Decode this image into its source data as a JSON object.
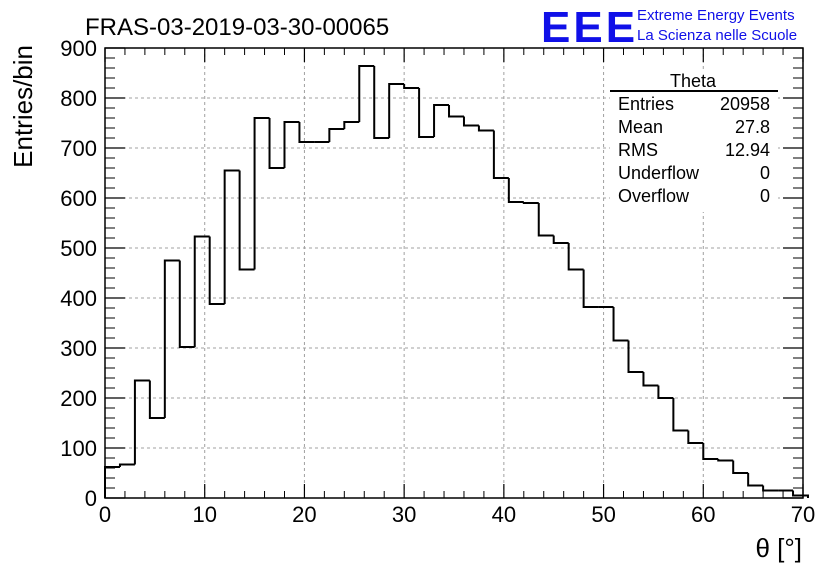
{
  "header": {
    "title": "FRAS-03-2019-03-30-00065",
    "logo_text": "EEE",
    "logo_line1": "Extreme Energy Events",
    "logo_line2": "La Scienza nelle Scuole"
  },
  "colors": {
    "logo": "#1010e8",
    "line": "#000000",
    "grid": "#a0a0a0",
    "background": "#ffffff"
  },
  "stats": {
    "title": "Theta",
    "rows": [
      {
        "label": "Entries",
        "value": "20958"
      },
      {
        "label": "Mean",
        "value": "27.8"
      },
      {
        "label": "RMS",
        "value": "12.94"
      },
      {
        "label": "Underflow",
        "value": "0"
      },
      {
        "label": "Overflow",
        "value": "0"
      }
    ]
  },
  "chart_data": {
    "type": "histogram",
    "title": "FRAS-03-2019-03-30-00065",
    "xlabel": "θ [°]",
    "ylabel": "Entries/bin",
    "xlim": [
      0,
      70
    ],
    "ylim": [
      0,
      900
    ],
    "bin_width": 1.5,
    "x_ticks": [
      "0",
      "10",
      "20",
      "30",
      "40",
      "50",
      "60",
      "70"
    ],
    "y_ticks": [
      "0",
      "100",
      "200",
      "300",
      "400",
      "500",
      "600",
      "700",
      "800",
      "900"
    ],
    "grid": true,
    "legend": "stats box top-right",
    "bin_edges_start": 0,
    "values": [
      62,
      67,
      235,
      160,
      475,
      302,
      523,
      388,
      655,
      457,
      760,
      660,
      752,
      712,
      712,
      738,
      752,
      864,
      720,
      828,
      820,
      722,
      786,
      763,
      745,
      735,
      640,
      592,
      590,
      525,
      510,
      457,
      382,
      382,
      315,
      252,
      225,
      200,
      135,
      110,
      78,
      75,
      50,
      25,
      15,
      15,
      5
    ]
  }
}
